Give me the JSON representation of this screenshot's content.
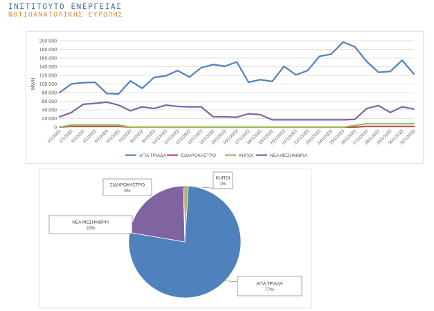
{
  "header": {
    "title": "ΙΝΣΤΙΤΟΥΤΟ ΕΝΕΡΓΕΙΑΣ",
    "subtitle": "ΝΟΤΙΟΑΝΑΤΟΛΙΚΗΣ ΕΥΡΩΠΗΣ"
  },
  "colors": {
    "agia_triada": "#4f81bd",
    "sidirokastro": "#c0504d",
    "kipoi": "#9bbb59",
    "nea_mesimvria": "#8064a2",
    "grid": "#d9d9d9",
    "text": "#595959"
  },
  "chart_data": [
    {
      "type": "line",
      "ylabel": "MWH",
      "ylim": [
        0,
        200000
      ],
      "yticks": [
        "0",
        "20.000",
        "40.000",
        "60.000",
        "80.000",
        "100.000",
        "120.000",
        "140.000",
        "160.000",
        "180.000",
        "200.000"
      ],
      "grid": true,
      "legend_position": "bottom",
      "x": [
        "1/1/2023",
        "2/1/2023",
        "3/1/2023",
        "4/1/2023",
        "5/1/2023",
        "6/1/2023",
        "7/1/2023",
        "8/1/2023",
        "9/1/2023",
        "10/1/2023",
        "11/1/2023",
        "12/1/2023",
        "13/1/2023",
        "14/1/2023",
        "15/1/2023",
        "16/1/2023",
        "17/1/2023",
        "18/1/2023",
        "19/1/2023",
        "20/1/2023",
        "21/1/2023",
        "22/1/2023",
        "23/1/2023",
        "24/1/2023",
        "25/1/2023",
        "26/1/2023",
        "27/1/2023",
        "28/1/2023",
        "29/1/2023",
        "30/1/2023",
        "31/1/2023"
      ],
      "series": [
        {
          "name": "ΑΓΙΑ ΤΡΙΑΔΑ",
          "color_key": "agia_triada",
          "values": [
            80000,
            100000,
            103000,
            104000,
            78000,
            77000,
            107000,
            90000,
            115000,
            119000,
            131000,
            116000,
            138000,
            145000,
            141000,
            151000,
            104000,
            110000,
            106000,
            141000,
            121000,
            131000,
            164000,
            169000,
            197000,
            186000,
            152000,
            127000,
            129000,
            155000,
            123000
          ]
        },
        {
          "name": "ΣΙΔΗΡΟΚΑΣΤΡΟ",
          "color_key": "sidirokastro",
          "values": [
            0,
            2000,
            2000,
            2000,
            2000,
            2000,
            0,
            0,
            0,
            0,
            0,
            0,
            0,
            0,
            0,
            0,
            0,
            0,
            0,
            0,
            0,
            0,
            0,
            0,
            0,
            0,
            2000,
            2000,
            2000,
            2000,
            2000
          ]
        },
        {
          "name": "ΚΗΠΟΙ",
          "color_key": "kipoi",
          "values": [
            0,
            5000,
            5000,
            5000,
            5000,
            5000,
            0,
            0,
            0,
            0,
            0,
            0,
            0,
            0,
            0,
            0,
            0,
            0,
            0,
            0,
            0,
            0,
            0,
            0,
            0,
            4000,
            8000,
            8000,
            8000,
            8000,
            8000
          ]
        },
        {
          "name": "ΝΕΑ ΜΕΣΗΜΒΡΙΑ",
          "color_key": "nea_mesimvria",
          "values": [
            24000,
            34000,
            53000,
            55000,
            58000,
            51000,
            38000,
            47000,
            43000,
            51000,
            48000,
            47000,
            47000,
            24000,
            24000,
            23000,
            31000,
            29000,
            17000,
            17000,
            17000,
            17000,
            17000,
            17000,
            17000,
            18000,
            43000,
            50000,
            34000,
            47000,
            42000
          ]
        }
      ]
    },
    {
      "type": "pie",
      "slices": [
        {
          "name": "ΑΓΙΑ ΤΡΙΑΔΑ",
          "value": 77,
          "label": "77%",
          "color_key": "agia_triada"
        },
        {
          "name": "ΣΙΔΗΡΟΚΑΣΤΡΟ",
          "value": 0.4,
          "label": "0%",
          "color_key": "sidirokastro"
        },
        {
          "name": "ΚΗΠΟΙ",
          "value": 1,
          "label": "1%",
          "color_key": "kipoi"
        },
        {
          "name": "ΝΕΑ ΜΕΣΗΜΒΡΙΑ",
          "value": 22,
          "label": "22%",
          "color_key": "nea_mesimvria"
        }
      ]
    }
  ]
}
